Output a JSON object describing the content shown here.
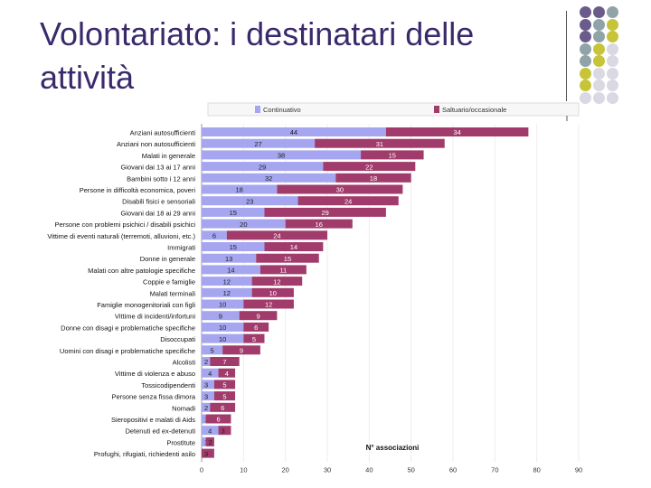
{
  "slide": {
    "title": "Volontariato: i destinatari delle attività"
  },
  "decoration": {
    "dot_colors": [
      "#6b5b8a",
      "#8fa3a8",
      "#c7c43a",
      "#d9d8e3"
    ]
  },
  "chart_data": {
    "type": "bar",
    "orientation": "horizontal",
    "stacked": true,
    "title": "",
    "xlabel": "N° associazioni",
    "ylabel": "",
    "xlim": [
      0,
      90
    ],
    "xticks": [
      0,
      10,
      20,
      30,
      40,
      50,
      60,
      70,
      80,
      90
    ],
    "legend_position": "top",
    "categories": [
      "Anziani autosufficienti",
      "Anziani non autosufficienti",
      "Malati in generale",
      "Giovani dai 13 ai 17 anni",
      "Bambini sotto i 12 anni",
      "Persone in difficoltà economica, poveri",
      "Disabili fisici e sensoriali",
      "Giovani dai 18 ai 29 anni",
      "Persone con problemi psichici / disabili psichici",
      "Vittime di eventi naturali (terremoti, alluvioni, etc.)",
      "Immigrati",
      "Donne in generale",
      "Malati con altre patologie specifiche",
      "Coppie e famiglie",
      "Malati terminali",
      "Famiglie monogenitoriali con figli",
      "Vittime di incidenti/infortuni",
      "Donne con disagi e problematiche specifiche",
      "Disoccupati",
      "Uomini con disagi e problematiche specifiche",
      "Alcolisti",
      "Vittime di violenza e abuso",
      "Tossicodipendenti",
      "Persone senza fissa dimora",
      "Nomadi",
      "Sieropositivi e malati di Aids",
      "Detenuti ed ex-detenuti",
      "Prostitute",
      "Profughi, rifugiati, richiedenti asilo"
    ],
    "series": [
      {
        "name": "Continuativo",
        "color": "#a5a5f0",
        "values": [
          44,
          27,
          38,
          29,
          32,
          18,
          23,
          15,
          20,
          6,
          15,
          13,
          14,
          12,
          12,
          10,
          9,
          10,
          10,
          5,
          2,
          4,
          3,
          3,
          2,
          1,
          4,
          1,
          0
        ]
      },
      {
        "name": "Saltuario/occasionale",
        "color": "#a13b6b",
        "values": [
          34,
          31,
          15,
          22,
          18,
          30,
          24,
          29,
          16,
          24,
          14,
          15,
          11,
          12,
          10,
          12,
          9,
          6,
          5,
          9,
          7,
          4,
          5,
          5,
          6,
          6,
          3,
          2,
          3
        ]
      }
    ]
  }
}
